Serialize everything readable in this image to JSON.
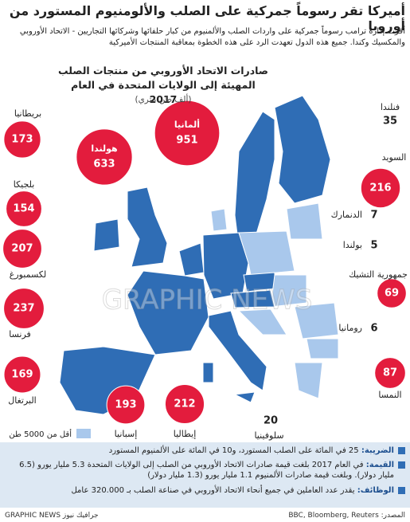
{
  "header": {
    "title": "أميركا تقر رسوماً جمركية على الصلب والألومنيوم المستورد من أوروبا",
    "intro": "أقرت إدارة ترامب رسوماً جمركية على واردات الصلب والألمنيوم من كبار حلفائها وشركائها التجاريين - الاتحاد الأوروبي والمكسيك وكندا. جميع هذه الدول تعهدت الرد على هذه الخطوة بمعاقبة المنتجات الأميركية"
  },
  "chart_data": {
    "type": "bubble-map",
    "title": "صادرات الاتحاد الأوروبي من منتجات الصلب المهيئة إلى الولايات المتحدة في العام 2017",
    "unit": "(ألف طن متري)",
    "categories": [
      "فنلندا",
      "السويد",
      "الدنمارك",
      "بولندا",
      "جمهورية التشيك",
      "رومانيا",
      "النمسا",
      "سلوفينيا",
      "إيطاليا",
      "إسبانيا",
      "البرتغال",
      "فرنسا",
      "لكسمبورغ",
      "بلجيكا",
      "بريطانيا",
      "هولندا",
      "ألمانيا"
    ],
    "values": [
      35,
      216,
      7,
      5,
      69,
      6,
      87,
      20,
      212,
      193,
      169,
      237,
      207,
      154,
      173,
      633,
      951
    ],
    "color": "#e31c3d",
    "legend": {
      "label": "أقل من 5000 طن",
      "color": "#a9c8ec"
    },
    "watermark": "GRAPHIC NEWS"
  },
  "notes": [
    {
      "label": "الضريبة:",
      "text": "25 في المائة على الصلب المستورد، و10 في المائة على الألمنيوم المستورد"
    },
    {
      "label": "القيمة:",
      "text": "في العام 2017 بلغت قيمة صادرات الاتحاد الأوروبي من الصلب إلى الولايات المتحدة 5.3 مليار يورو (6.5 مليار دولار). وبلغت قيمة صادرات الألمنيوم 1.1 مليار يورو (1.3 مليار دولار)"
    },
    {
      "label": "الوظائف:",
      "text": "يقدر عدد العاملين في جميع أنحاء الاتحاد الأوروبي في صناعة الصلب بـ 320.000 عامل"
    }
  ],
  "footer": {
    "source": "المصدر: BBC, Bloomberg, Reuters",
    "credit": "GRAPHIC NEWS جرافيك نيوز"
  }
}
